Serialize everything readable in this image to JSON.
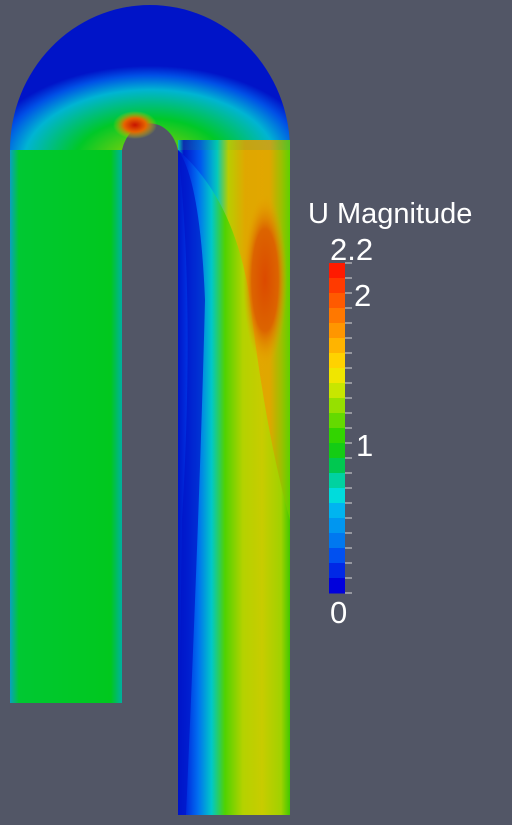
{
  "legend": {
    "title": "U Magnitude",
    "tick_labels": {
      "max": "2.2",
      "upper": "2",
      "mid": "1",
      "min": "0"
    },
    "color_segments": [
      "#ff1a00",
      "#ff3a00",
      "#ff5a00",
      "#ff7800",
      "#ff9600",
      "#ffb400",
      "#ffd200",
      "#f0e600",
      "#c8e600",
      "#96e000",
      "#64da00",
      "#32d400",
      "#14cc14",
      "#00c850",
      "#00d2a0",
      "#00dcdc",
      "#00b4f0",
      "#0096f0",
      "#0078f0",
      "#0050f0",
      "#0028e6",
      "#0000dc"
    ]
  },
  "scene": {
    "background_color": "#525666",
    "description_colors": {
      "inlet_green": "#00c81e",
      "outlet_yellow": "#c8d200",
      "hot_orange": "#dc5a00",
      "wall_blue": "#0014c8"
    }
  }
}
